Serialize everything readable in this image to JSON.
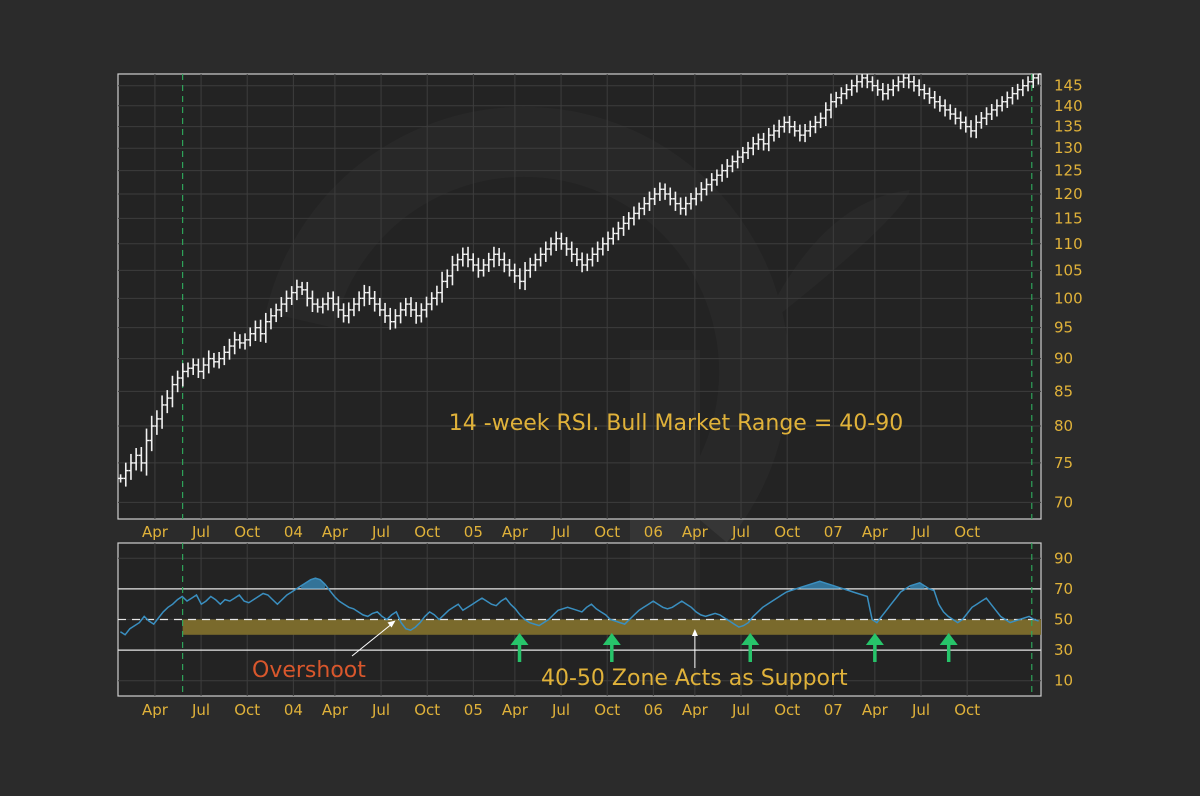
{
  "colors": {
    "background": "#2b2b2b",
    "plot_bg": "#1e1e1e",
    "frame": "#cfcfcf",
    "grid": "#3d3d3d",
    "bars": "#f2f2f2",
    "tick_text": "#e0b23a",
    "annotation_text": "#e0b23a",
    "overshoot_text": "#d9572c",
    "rsi_line": "#3a8fc0",
    "rsi_fill": "#3a8fc0",
    "zone_band": "#7a6a2c",
    "up_arrow": "#27c46a",
    "period_marker": "#2fa35a",
    "level_lines": "#e6e6e6"
  },
  "annotations": {
    "main": "14 -week RSI. Bull Market Range = 40-90",
    "overshoot": "Overshoot",
    "zone": "40-50 Zone Acts as Support"
  },
  "chart_data": [
    {
      "type": "bar",
      "title": "",
      "xlabel": "",
      "ylabel": "",
      "x_tick_labels": [
        "Apr",
        "Jul",
        "Oct",
        "04",
        "Apr",
        "Jul",
        "Oct",
        "05",
        "Apr",
        "Jul",
        "Oct",
        "06",
        "Apr",
        "Jul",
        "Oct",
        "07",
        "Apr",
        "Jul",
        "Oct"
      ],
      "y_tick_labels": [
        "70",
        "75",
        "80",
        "85",
        "90",
        "95",
        "100",
        "105",
        "110",
        "115",
        "120",
        "125",
        "130",
        "135",
        "140",
        "145"
      ],
      "ylim": [
        68,
        148
      ],
      "scale": "log",
      "grid": true,
      "x_range_weeks": [
        0,
        200
      ],
      "tick_weeks": [
        8,
        18,
        28,
        38,
        47,
        57,
        67,
        77,
        86,
        96,
        106,
        116,
        125,
        135,
        145,
        155,
        164,
        174,
        184
      ],
      "period_markers_weeks": [
        14,
        198
      ],
      "series": [
        {
          "values": [
            73,
            74,
            75,
            76,
            75,
            78,
            80,
            81,
            83,
            84,
            86,
            87,
            88,
            88.5,
            89,
            88,
            89,
            90,
            89.5,
            90,
            91,
            92,
            93,
            92.5,
            93,
            94,
            95,
            94,
            96,
            97,
            98,
            99,
            100,
            101,
            102,
            101.5,
            100,
            99,
            98.5,
            99,
            100,
            99,
            98,
            97,
            98,
            99,
            100,
            101,
            100,
            99,
            98,
            97,
            96,
            97,
            98,
            99,
            98,
            97,
            98,
            99,
            100,
            101,
            103,
            104,
            106,
            107,
            108,
            107,
            106,
            105,
            106,
            107,
            108,
            107,
            106,
            105,
            104,
            103,
            105,
            106,
            107,
            108,
            109,
            110,
            111,
            110,
            109,
            108,
            107,
            106,
            107,
            108,
            109,
            110,
            111,
            112,
            113,
            114,
            115,
            116,
            117,
            118,
            119,
            120,
            121,
            120,
            119,
            118,
            117,
            118,
            119,
            120,
            121,
            122,
            123,
            124,
            125,
            126,
            127,
            128,
            129,
            130,
            131,
            132,
            131,
            133,
            134,
            135,
            136,
            135,
            134,
            133,
            134,
            135,
            136,
            137,
            139,
            141,
            142,
            143,
            144,
            145,
            146,
            147,
            146,
            145,
            144,
            143,
            144,
            145,
            146,
            147,
            146,
            145,
            144,
            143,
            142,
            141,
            140,
            139,
            138,
            137,
            136,
            135,
            134,
            136,
            137,
            138,
            139,
            140,
            141,
            142,
            143,
            144,
            145,
            146,
            147,
            148
          ]
        }
      ]
    },
    {
      "type": "line",
      "title": "",
      "xlabel": "",
      "ylabel": "",
      "y_tick_labels": [
        "10",
        "30",
        "50",
        "70",
        "90"
      ],
      "ylim": [
        0,
        100
      ],
      "levels": [
        30,
        50,
        70
      ],
      "support_zone": [
        40,
        50
      ],
      "arrows_weeks": [
        87,
        107,
        137,
        164,
        180
      ],
      "overshoot_week": 61,
      "zone_pointer_week": 125,
      "series": [
        {
          "values": [
            42,
            40,
            44,
            46,
            48,
            52,
            49,
            47,
            51,
            55,
            58,
            60,
            63,
            65,
            62,
            64,
            66,
            60,
            62,
            65,
            63,
            60,
            63,
            62,
            64,
            66,
            62,
            61,
            63,
            65,
            67,
            66,
            63,
            60,
            63,
            66,
            68,
            70,
            72,
            74,
            76,
            77,
            76,
            73,
            69,
            65,
            62,
            60,
            58,
            57,
            55,
            53,
            52,
            54,
            55,
            52,
            50,
            53,
            55,
            48,
            44,
            43,
            45,
            48,
            52,
            55,
            53,
            50,
            53,
            56,
            58,
            60,
            56,
            58,
            60,
            62,
            64,
            62,
            60,
            59,
            62,
            64,
            60,
            57,
            53,
            50,
            48,
            47,
            46,
            48,
            50,
            53,
            56,
            57,
            58,
            57,
            56,
            55,
            58,
            60,
            57,
            55,
            53,
            50,
            49,
            48,
            47,
            50,
            53,
            56,
            58,
            60,
            62,
            60,
            58,
            57,
            58,
            60,
            62,
            60,
            58,
            55,
            53,
            52,
            53,
            54,
            53,
            51,
            49,
            47,
            45,
            46,
            48,
            52,
            55,
            58,
            60,
            62,
            64,
            66,
            68,
            69,
            70,
            71,
            72,
            73,
            74,
            75,
            74,
            73,
            72,
            71,
            70,
            69,
            68,
            67,
            66,
            65,
            50,
            48,
            52,
            56,
            60,
            64,
            68,
            70,
            72,
            73,
            74,
            72,
            70,
            69,
            60,
            55,
            52,
            50,
            48,
            50,
            54,
            58,
            60,
            62,
            64,
            60,
            56,
            52,
            50,
            48,
            49,
            50,
            51,
            52,
            50,
            49
          ]
        }
      ]
    }
  ]
}
